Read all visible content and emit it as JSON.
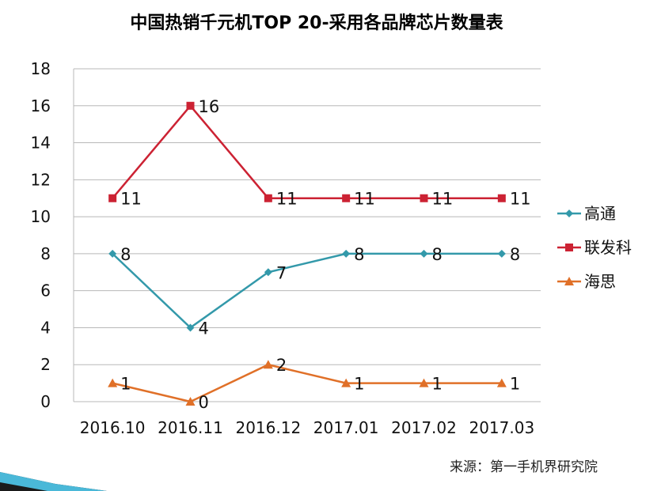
{
  "chart_data": {
    "type": "line",
    "title": "中国热销千元机TOP 20-采用各品牌芯片数量表",
    "categories": [
      "2016.10",
      "2016.11",
      "2016.12",
      "2017.01",
      "2017.02",
      "2017.03"
    ],
    "ylim": [
      0,
      18
    ],
    "yticks": [
      0,
      2,
      4,
      6,
      8,
      10,
      12,
      14,
      16,
      18
    ],
    "series": [
      {
        "name": "高通",
        "values": [
          8,
          4,
          7,
          8,
          8,
          8
        ],
        "color": "#3399aa",
        "marker": "diamond"
      },
      {
        "name": "联发科",
        "values": [
          11,
          16,
          11,
          11,
          11,
          11
        ],
        "color": "#cc2233",
        "marker": "square"
      },
      {
        "name": "海思",
        "values": [
          1,
          0,
          2,
          1,
          1,
          1
        ],
        "color": "#e07028",
        "marker": "triangle"
      }
    ],
    "grid": true,
    "legend": "right"
  },
  "source": "来源：第一手机界研究院"
}
